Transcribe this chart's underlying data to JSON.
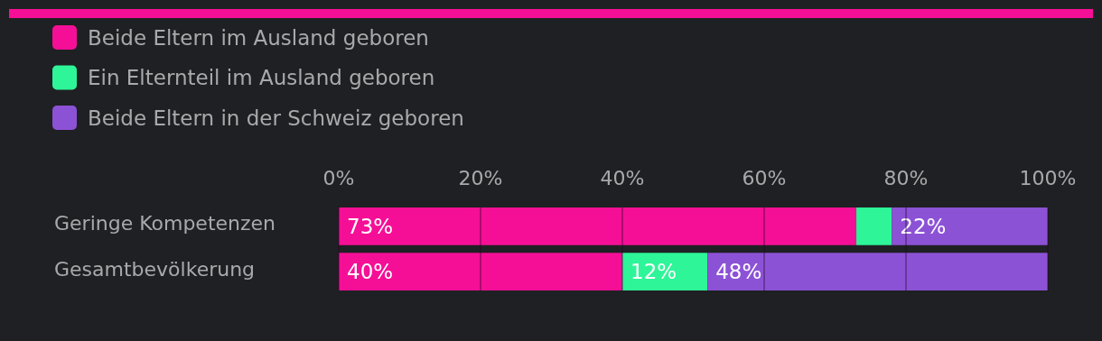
{
  "chart_data": {
    "type": "bar",
    "orientation": "horizontal",
    "stacked": true,
    "categories": [
      "Geringe Kompetenzen",
      "Gesamtbevölkerung"
    ],
    "series": [
      {
        "name": "Beide Eltern im Ausland geboren",
        "color": "#f50f96",
        "values": [
          73,
          40
        ],
        "value_labels": [
          "73%",
          "40%"
        ]
      },
      {
        "name": "Ein Elternteil im Ausland geboren",
        "color": "#2ef598",
        "values": [
          5,
          12
        ],
        "value_labels": [
          null,
          "12%"
        ]
      },
      {
        "name": "Beide Eltern in der Schweiz geboren",
        "color": "#8c52d6",
        "values": [
          22,
          48
        ],
        "value_labels": [
          "22%",
          "48%"
        ]
      }
    ],
    "xlim": [
      0,
      100
    ],
    "xticks": [
      {
        "value": 0,
        "label": "0%"
      },
      {
        "value": 20,
        "label": "20%"
      },
      {
        "value": 40,
        "label": "40%"
      },
      {
        "value": 60,
        "label": "60%"
      },
      {
        "value": 80,
        "label": "80%"
      },
      {
        "value": 100,
        "label": "100%"
      }
    ],
    "grid": "x",
    "legend": "top left"
  }
}
